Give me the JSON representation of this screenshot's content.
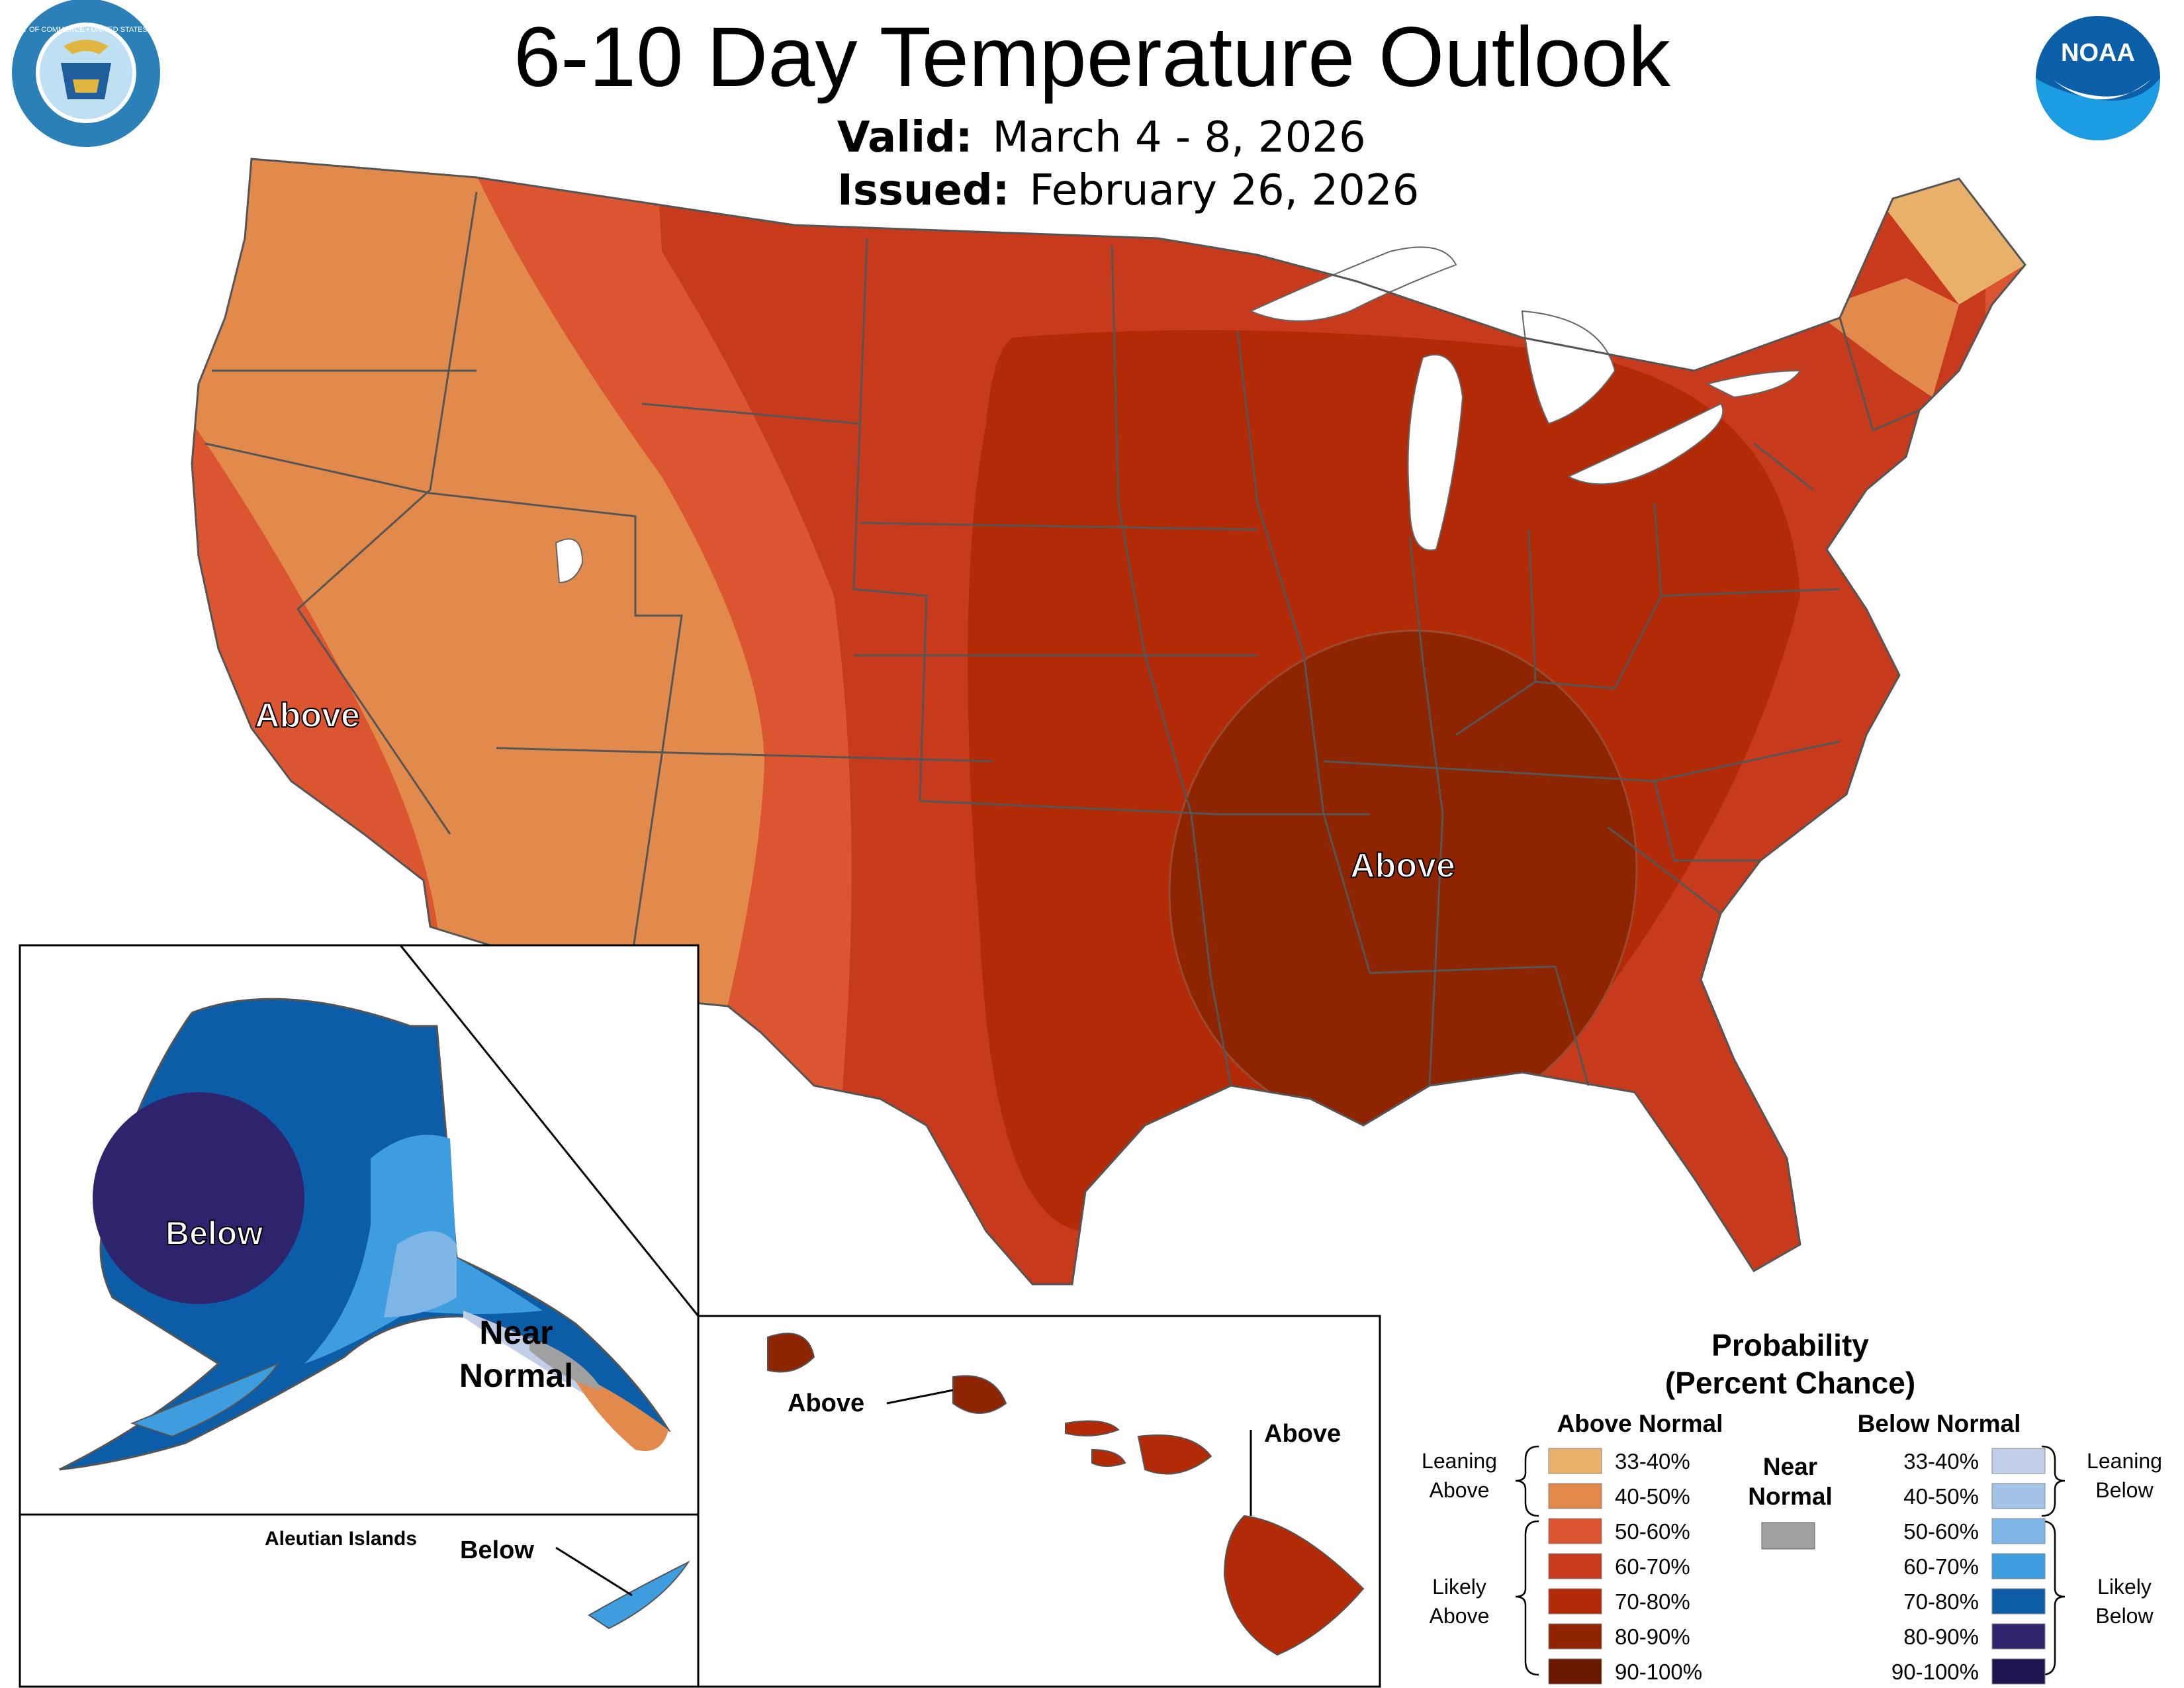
{
  "title": "6-10 Day Temperature Outlook",
  "valid": {
    "label": "Valid:",
    "value": "March 4 - 8, 2026"
  },
  "issued": {
    "label": "Issued:",
    "value": "February 26, 2026"
  },
  "logos": {
    "left": {
      "name": "department-of-commerce-seal",
      "ring_text": "DEPARTMENT OF COMMERCE • UNITED STATES OF AMERICA"
    },
    "right": {
      "name": "noaa-logo",
      "text": "NOAA"
    }
  },
  "map_labels": {
    "conus_west": "Above",
    "conus_southeast": "Above",
    "alaska": "Below",
    "alaska_panhandle_1": "Near",
    "alaska_panhandle_2": "Normal",
    "aleutian_title": "Aleutian Islands",
    "aleutian": "Below",
    "hawaii_kauai_oahu": "Above",
    "hawaii_big_island": "Above"
  },
  "legend": {
    "title_1": "Probability",
    "title_2": "(Percent Chance)",
    "above_header": "Above Normal",
    "below_header": "Below Normal",
    "near_header_1": "Near",
    "near_header_2": "Normal",
    "near_color": "#a0a0a0",
    "leaning_above_1": "Leaning",
    "leaning_above_2": "Above",
    "likely_above_1": "Likely",
    "likely_above_2": "Above",
    "leaning_below_1": "Leaning",
    "leaning_below_2": "Below",
    "likely_below_1": "Likely",
    "likely_below_2": "Below",
    "above": [
      {
        "label": "33-40%",
        "color": "#e8b06a"
      },
      {
        "label": "40-50%",
        "color": "#e28a4b"
      },
      {
        "label": "50-60%",
        "color": "#da5530"
      },
      {
        "label": "60-70%",
        "color": "#c83a1c"
      },
      {
        "label": "70-80%",
        "color": "#b22a06"
      },
      {
        "label": "80-90%",
        "color": "#8e2400"
      },
      {
        "label": "90-100%",
        "color": "#6b1800"
      }
    ],
    "below": [
      {
        "label": "33-40%",
        "color": "#c2cde8"
      },
      {
        "label": "40-50%",
        "color": "#a2c2e6"
      },
      {
        "label": "50-60%",
        "color": "#7db6e6"
      },
      {
        "label": "60-70%",
        "color": "#3e9ddf"
      },
      {
        "label": "70-80%",
        "color": "#0b5da7"
      },
      {
        "label": "80-90%",
        "color": "#2d246d"
      },
      {
        "label": "90-100%",
        "color": "#1e1550"
      }
    ]
  }
}
